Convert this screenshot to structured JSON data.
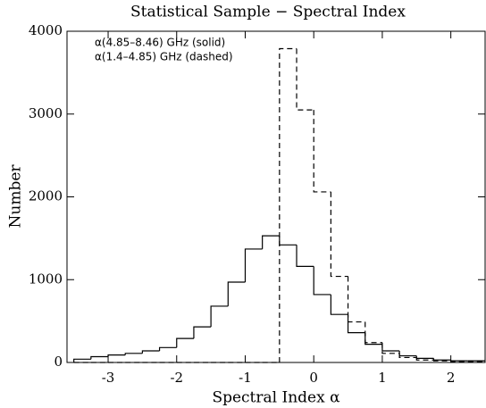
{
  "chart_data": {
    "type": "histogram",
    "title": "Statistical Sample − Spectral Index",
    "x_label": "Spectral Index α",
    "y_label": "Number",
    "bins": [
      -3.5,
      -3.25,
      -3,
      -2.75,
      -2.5,
      -2.25,
      -2,
      -1.75,
      -1.5,
      -1.25,
      -1,
      -0.75,
      -0.5,
      -0.25,
      0,
      0.25,
      0.5,
      0.75,
      1,
      1.25,
      1.5,
      1.75,
      2,
      2.25,
      2.5
    ],
    "series": [
      {
        "name": "α(4.85–8.46) GHz (solid)",
        "color": "#000000",
        "dash": false,
        "values": [
          40,
          70,
          90,
          110,
          140,
          180,
          290,
          430,
          680,
          970,
          1370,
          1530,
          1420,
          1160,
          820,
          580,
          360,
          220,
          140,
          80,
          50,
          30,
          20,
          20
        ]
      },
      {
        "name": "α(1.4–4.85) GHz (dashed)",
        "color": "#000000",
        "dash": true,
        "values": [
          0,
          0,
          0,
          0,
          0,
          0,
          0,
          0,
          0,
          0,
          0,
          0,
          3790,
          3050,
          2060,
          1040,
          490,
          240,
          110,
          60,
          30,
          20,
          10,
          10
        ]
      }
    ],
    "xlim": [
      -3.6,
      2.5
    ],
    "ylim": [
      0,
      4000
    ],
    "xticks": [
      -3,
      -2,
      -1,
      0,
      1,
      2
    ],
    "yticks": [
      0,
      1000,
      2000,
      3000,
      4000
    ]
  }
}
